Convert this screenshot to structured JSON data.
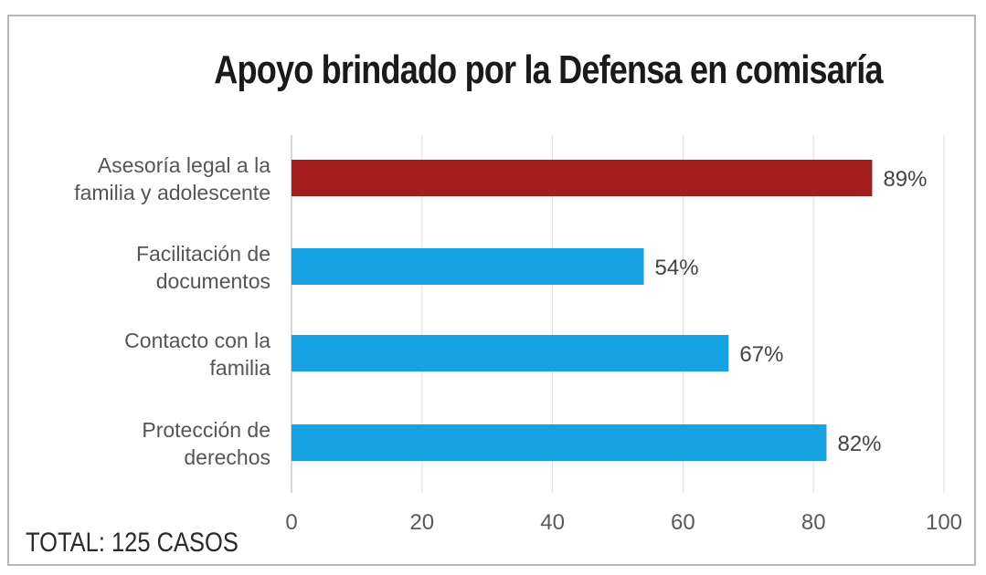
{
  "chart_data": {
    "type": "bar",
    "orientation": "horizontal",
    "title": "Apoyo brindado por la Defensa en comisaría",
    "categories": [
      [
        "Asesoría legal a la",
        "familia y adolescente"
      ],
      [
        "Facilitación de",
        "documentos"
      ],
      [
        "Contacto con la",
        "familia"
      ],
      [
        "Protección de",
        "derechos"
      ]
    ],
    "values": [
      89,
      54,
      67,
      82
    ],
    "value_labels": [
      "89%",
      "54%",
      "67%",
      "82%"
    ],
    "bar_colors": [
      "#a31d1e",
      "#17a3e3",
      "#17a3e3",
      "#17a3e3"
    ],
    "xlim": [
      0,
      100
    ],
    "xticks": [
      "0",
      "20",
      "40",
      "60",
      "80",
      "100"
    ],
    "grid": true,
    "footer": "TOTAL: 125 CASOS"
  },
  "colors": {
    "grid": "#dddddd",
    "axis": "#c8c8c8"
  }
}
